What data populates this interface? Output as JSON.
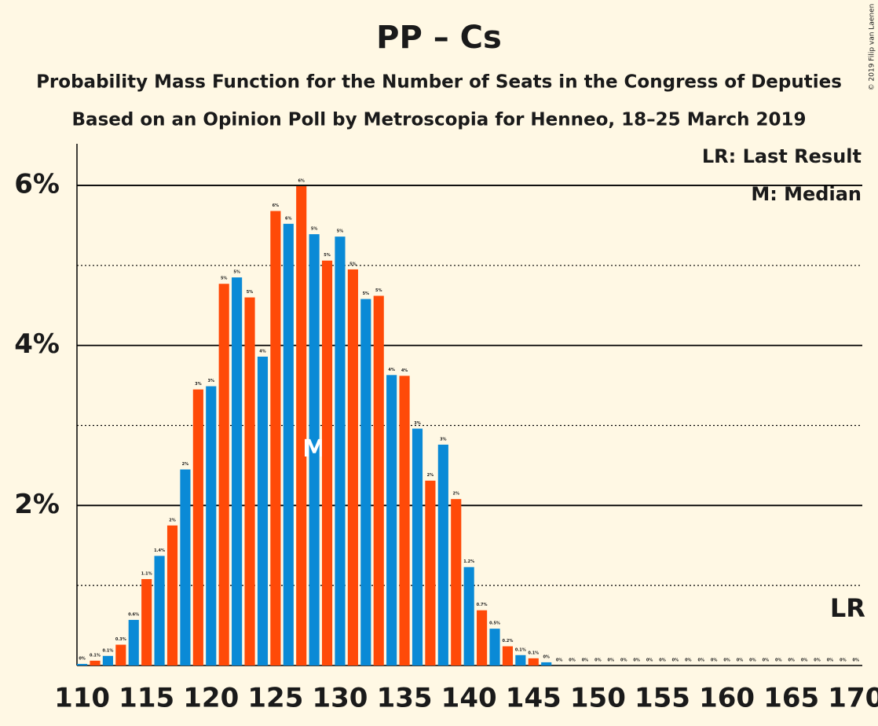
{
  "chart_data": {
    "type": "bar",
    "title": "PP – Cs",
    "subtitle": "Probability Mass Function for the Number of Seats in the Congress of Deputies",
    "subtitle2": "Based on an Opinion Poll by Metroscopia for Henneo, 18–25 March 2019",
    "copyright": "© 2019 Filip van Laenen",
    "legend_lr": "LR: Last Result",
    "legend_median": "M: Median",
    "median": 128,
    "median_label": "M",
    "last_result": 169,
    "last_result_label": "LR",
    "bar_colors": [
      "#0a8ad6",
      "#ff4a08"
    ],
    "x": [
      110,
      111,
      112,
      113,
      114,
      115,
      116,
      117,
      118,
      119,
      120,
      121,
      122,
      123,
      124,
      125,
      126,
      127,
      128,
      129,
      130,
      131,
      132,
      133,
      134,
      135,
      136,
      137,
      138,
      139,
      140,
      141,
      142,
      143,
      144,
      145,
      146,
      147,
      148,
      149,
      150,
      151,
      152,
      153,
      154,
      155,
      156,
      157,
      158,
      159,
      160,
      161,
      162,
      163,
      164,
      165,
      166,
      167,
      168,
      169,
      170
    ],
    "values": [
      0.02,
      0.06,
      0.12,
      0.26,
      0.57,
      1.08,
      1.37,
      1.75,
      2.45,
      3.45,
      3.49,
      4.77,
      4.85,
      4.6,
      3.86,
      5.68,
      5.52,
      5.99,
      5.39,
      5.06,
      5.36,
      4.95,
      4.58,
      4.62,
      3.63,
      3.62,
      2.96,
      2.31,
      2.76,
      2.08,
      1.23,
      0.69,
      0.46,
      0.24,
      0.13,
      0.09,
      0.04,
      0,
      0,
      0,
      0,
      0,
      0,
      0,
      0,
      0,
      0,
      0,
      0,
      0,
      0,
      0,
      0,
      0,
      0,
      0,
      0,
      0,
      0,
      0,
      0
    ],
    "value_labels": [
      "0%",
      "0.1%",
      "0.1%",
      "0.3%",
      "0.6%",
      "1.1%",
      "1.4%",
      "2%",
      "2%",
      "3%",
      "3%",
      "5%",
      "5%",
      "5%",
      "4%",
      "6%",
      "6%",
      "6%",
      "5%",
      "5%",
      "5%",
      "5%",
      "5%",
      "5%",
      "4%",
      "4%",
      "3%",
      "2%",
      "3%",
      "2%",
      "1.2%",
      "0.7%",
      "0.5%",
      "0.2%",
      "0.1%",
      "0.1%",
      "0%",
      "0%",
      "0%",
      "0%",
      "0%",
      "0%",
      "0%",
      "0%",
      "0%",
      "0%",
      "0%",
      "0%",
      "0%",
      "0%",
      "0%",
      "0%",
      "0%",
      "0%",
      "0%",
      "0%",
      "0%",
      "0%",
      "0%",
      "0%",
      "0%"
    ],
    "xlim": [
      109.6,
      170.5
    ],
    "xticks": [
      110,
      115,
      120,
      125,
      130,
      135,
      140,
      145,
      150,
      155,
      160,
      165,
      170
    ],
    "ylim": [
      0,
      6.52
    ],
    "yticks": [
      {
        "value": 2,
        "label": "2%"
      },
      {
        "value": 4,
        "label": "4%"
      },
      {
        "value": 6,
        "label": "6%"
      }
    ],
    "yminor": [
      1,
      3,
      5
    ],
    "grid": true
  }
}
